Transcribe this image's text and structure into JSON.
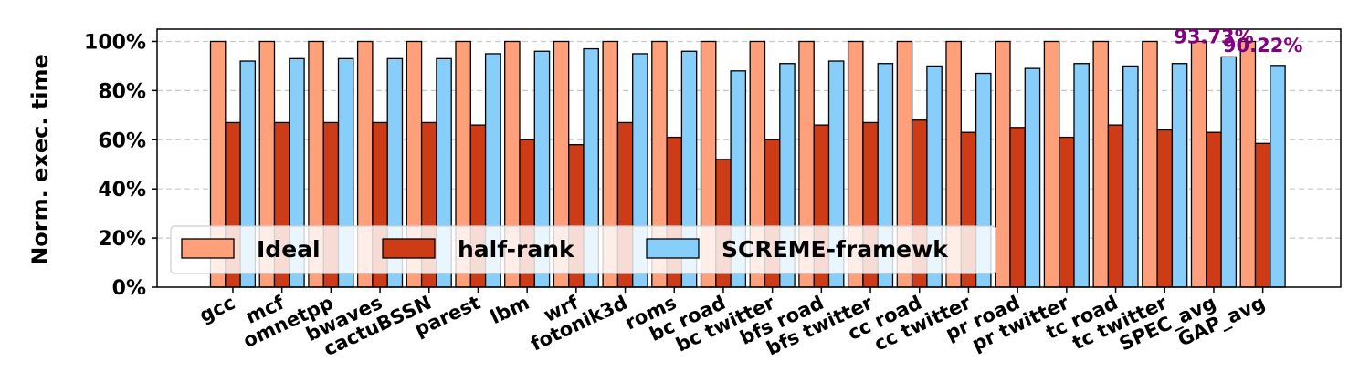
{
  "chart_data": {
    "type": "bar",
    "ylabel": "Norm. exec. time",
    "ylim": [
      0,
      100
    ],
    "yticks": [
      "0%",
      "20%",
      "40%",
      "60%",
      "80%",
      "100%"
    ],
    "grid": true,
    "legend_position": "lower-left",
    "categories": [
      "gcc",
      "mcf",
      "omnetpp",
      "bwaves",
      "cactuBSSN",
      "parest",
      "lbm",
      "wrf",
      "fotonik3d",
      "roms",
      "bc road",
      "bc twitter",
      "bfs road",
      "bfs twitter",
      "cc road",
      "cc twitter",
      "pr road",
      "pr twitter",
      "tc road",
      "tc twitter",
      "SPEC_avg",
      "GAP_avg"
    ],
    "series": [
      {
        "name": "Ideal",
        "color": "#FFA07A",
        "values": [
          100,
          100,
          100,
          100,
          100,
          100,
          100,
          100,
          100,
          100,
          100,
          100,
          100,
          100,
          100,
          100,
          100,
          100,
          100,
          100,
          100,
          100
        ]
      },
      {
        "name": "half-rank",
        "color": "#CD3C16",
        "values": [
          67,
          67,
          67,
          67,
          67,
          66,
          60,
          58,
          67,
          61,
          52,
          60,
          66,
          67,
          68,
          63,
          65,
          61,
          66,
          64,
          63,
          58.5
        ]
      },
      {
        "name": "SCREME-framewk",
        "color": "#87CEFA",
        "values": [
          92,
          93,
          93,
          93,
          93,
          95,
          96,
          97,
          95,
          96,
          88,
          91,
          92,
          91,
          90,
          87,
          89,
          91,
          90,
          91,
          93.73,
          90.22
        ]
      }
    ],
    "annotations": [
      {
        "text": "93.73%",
        "category": "SPEC_avg",
        "color": "#800080"
      },
      {
        "text": "90.22%",
        "category": "GAP_avg",
        "color": "#800080"
      }
    ]
  }
}
